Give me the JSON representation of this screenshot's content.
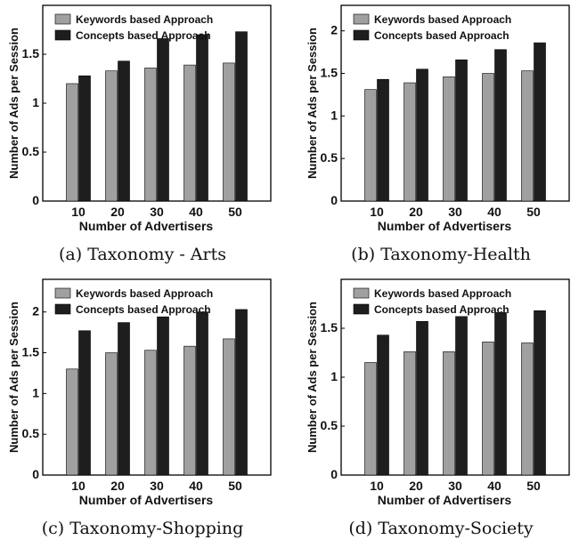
{
  "chart_data": [
    {
      "type": "bar",
      "caption": "(a) Taxonomy - Arts",
      "xlabel": "Number of Advertisers",
      "ylabel": "Number of Ads per Session",
      "categories": [
        "10",
        "20",
        "30",
        "40",
        "50"
      ],
      "ylim": [
        0,
        2
      ],
      "yticks": [
        "0",
        "0.5",
        "1",
        "1.5"
      ],
      "legend_position": "top-left",
      "series": [
        {
          "name": "Keywords based Approach",
          "color": "#a0a0a0",
          "values": [
            1.2,
            1.33,
            1.36,
            1.39,
            1.41
          ]
        },
        {
          "name": "Concepts based Approach",
          "color": "#1e1e1e",
          "values": [
            1.28,
            1.43,
            1.66,
            1.7,
            1.73
          ]
        }
      ]
    },
    {
      "type": "bar",
      "caption": "(b) Taxonomy-Health",
      "xlabel": "Number of Advertisers",
      "ylabel": "Number of Ads per Session",
      "categories": [
        "10",
        "20",
        "30",
        "40",
        "50"
      ],
      "ylim": [
        0,
        2.3
      ],
      "yticks": [
        "0",
        "0.5",
        "1",
        "1.5",
        "2"
      ],
      "legend_position": "top-left",
      "series": [
        {
          "name": "Keywords based Approach",
          "color": "#a0a0a0",
          "values": [
            1.31,
            1.39,
            1.46,
            1.5,
            1.53
          ]
        },
        {
          "name": "Concepts based Approach",
          "color": "#1e1e1e",
          "values": [
            1.43,
            1.55,
            1.66,
            1.78,
            1.86
          ]
        }
      ]
    },
    {
      "type": "bar",
      "caption": "(c) Taxonomy-Shopping",
      "xlabel": "Number of Advertisers",
      "ylabel": "Number of Ads per Session",
      "categories": [
        "10",
        "20",
        "30",
        "40",
        "50"
      ],
      "ylim": [
        0,
        2.4
      ],
      "yticks": [
        "0",
        "0.5",
        "1",
        "1.5",
        "2"
      ],
      "legend_position": "top-left",
      "series": [
        {
          "name": "Keywords based Approach",
          "color": "#a0a0a0",
          "values": [
            1.3,
            1.5,
            1.53,
            1.58,
            1.67
          ]
        },
        {
          "name": "Concepts based Approach",
          "color": "#1e1e1e",
          "values": [
            1.77,
            1.87,
            1.94,
            2.0,
            2.03
          ]
        }
      ]
    },
    {
      "type": "bar",
      "caption": "(d) Taxonomy-Society",
      "xlabel": "Number of Advertisers",
      "ylabel": "Number of Ads per Session",
      "categories": [
        "10",
        "20",
        "30",
        "40",
        "50"
      ],
      "ylim": [
        0,
        2
      ],
      "yticks": [
        "0",
        "0.5",
        "1",
        "1.5"
      ],
      "legend_position": "top-left",
      "series": [
        {
          "name": "Keywords based Approach",
          "color": "#a0a0a0",
          "values": [
            1.15,
            1.26,
            1.26,
            1.36,
            1.35
          ]
        },
        {
          "name": "Concepts based Approach",
          "color": "#1e1e1e",
          "values": [
            1.43,
            1.57,
            1.62,
            1.66,
            1.68
          ]
        }
      ]
    }
  ]
}
